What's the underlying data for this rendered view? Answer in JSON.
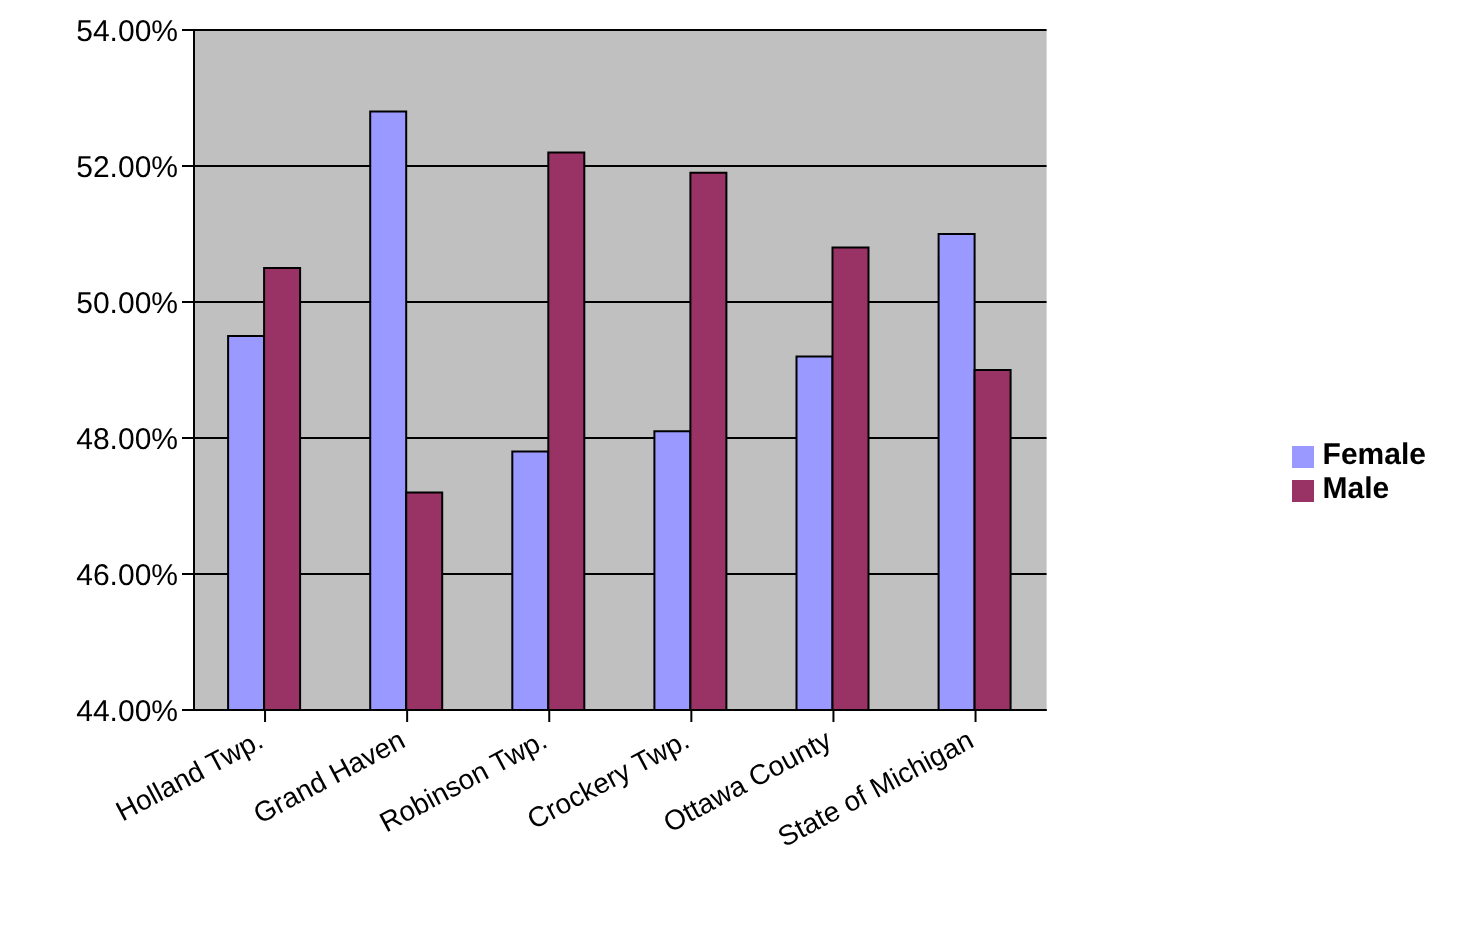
{
  "chart_data": {
    "type": "bar",
    "categories": [
      "Holland Twp.",
      "Grand Haven",
      "Robinson Twp.",
      "Crockery Twp.",
      "Ottawa County",
      "State of Michigan"
    ],
    "series": [
      {
        "name": "Female",
        "color": "#9999ff",
        "values": [
          49.5,
          52.8,
          47.8,
          48.1,
          49.2,
          51.0
        ]
      },
      {
        "name": "Male",
        "color": "#993366",
        "values": [
          50.5,
          47.2,
          52.2,
          51.9,
          50.8,
          49.0
        ]
      }
    ],
    "ylim": [
      44,
      54
    ],
    "yticks": [
      {
        "value": 44,
        "label": "44.00%"
      },
      {
        "value": 46,
        "label": "46.00%"
      },
      {
        "value": 48,
        "label": "48.00%"
      },
      {
        "value": 50,
        "label": "50.00%"
      },
      {
        "value": 52,
        "label": "52.00%"
      },
      {
        "value": 54,
        "label": "54.00%"
      }
    ],
    "grid": "y",
    "legend": "right"
  }
}
